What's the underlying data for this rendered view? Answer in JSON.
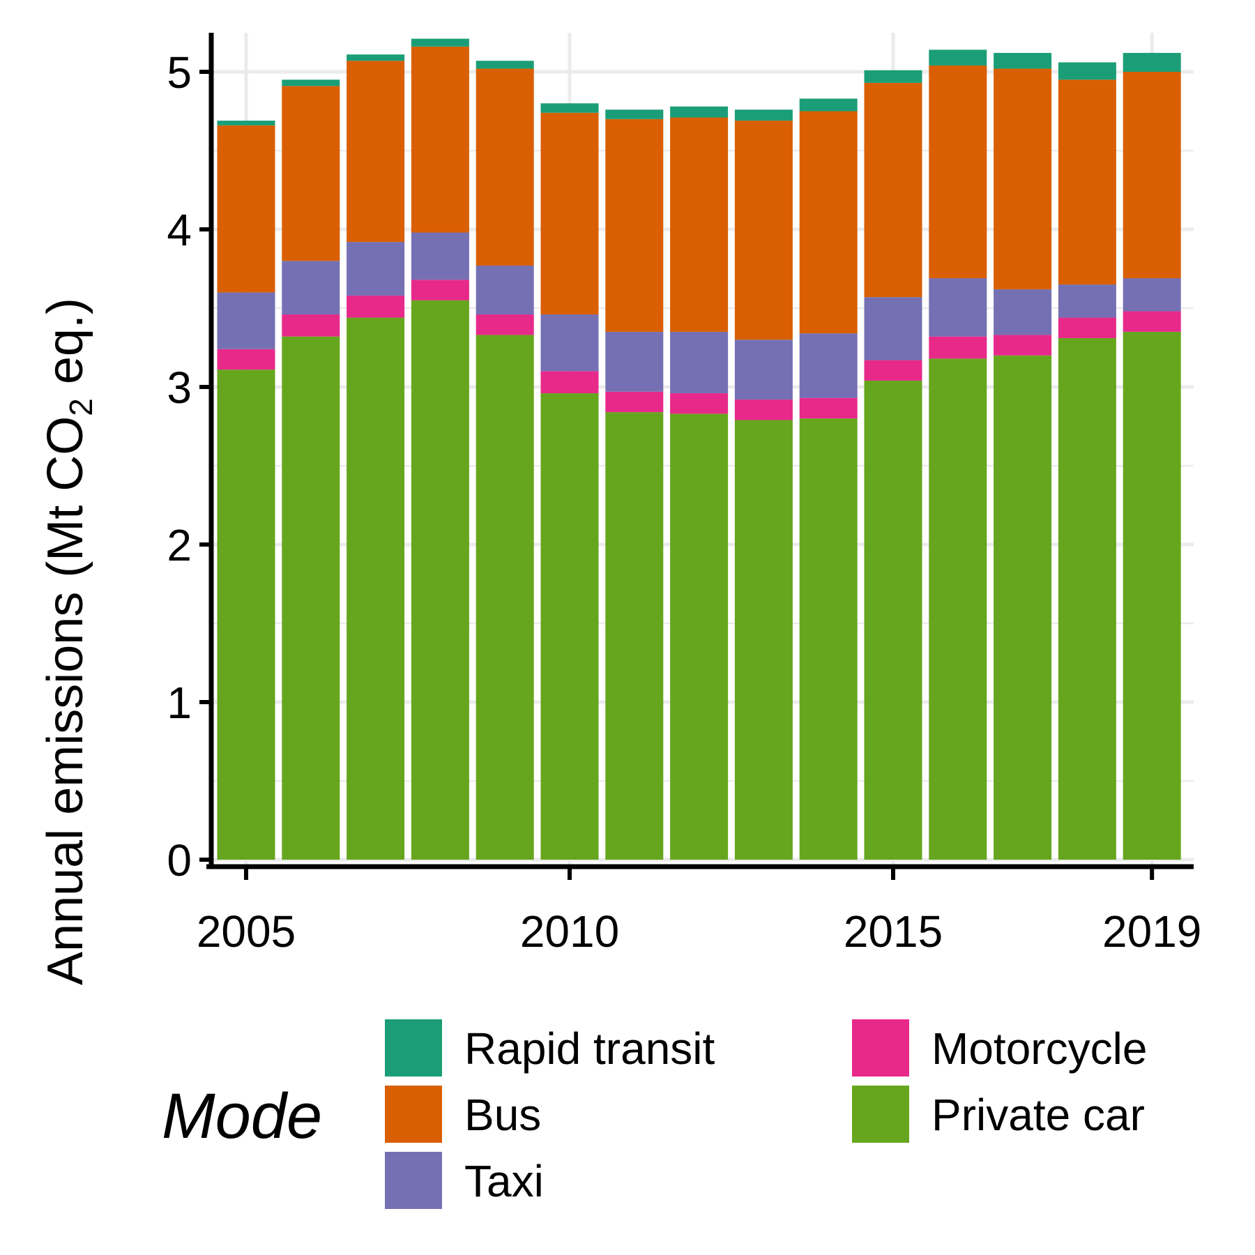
{
  "chart_data": {
    "type": "bar",
    "stacked": true,
    "x": [
      2005,
      2006,
      2007,
      2008,
      2009,
      2010,
      2011,
      2012,
      2013,
      2014,
      2015,
      2016,
      2017,
      2018,
      2019
    ],
    "x_ticks": [
      2005,
      2010,
      2015,
      2019
    ],
    "ylabel": "Annual emissions (Mt CO",
    "ylabel_subscript": "2",
    "ylabel_suffix": " eq.)",
    "ylim": [
      0,
      5.3
    ],
    "y_ticks": [
      0,
      1,
      2,
      3,
      4,
      5
    ],
    "grid": true,
    "legend": {
      "title": "Mode",
      "placement": "bottom",
      "items_order": [
        "Rapid transit",
        "Bus",
        "Taxi",
        "Motorcycle",
        "Private car"
      ]
    },
    "series": [
      {
        "name": "Private car",
        "color": "#66a61e",
        "values": [
          3.11,
          3.32,
          3.44,
          3.55,
          3.33,
          2.96,
          2.84,
          2.83,
          2.79,
          2.8,
          3.04,
          3.18,
          3.2,
          3.31,
          3.35
        ]
      },
      {
        "name": "Motorcycle",
        "color": "#e7298a",
        "values": [
          0.13,
          0.14,
          0.14,
          0.13,
          0.13,
          0.14,
          0.13,
          0.13,
          0.13,
          0.13,
          0.13,
          0.14,
          0.13,
          0.13,
          0.13
        ]
      },
      {
        "name": "Taxi",
        "color": "#7570b3",
        "values": [
          0.36,
          0.34,
          0.34,
          0.3,
          0.31,
          0.36,
          0.38,
          0.39,
          0.38,
          0.41,
          0.4,
          0.37,
          0.29,
          0.21,
          0.21
        ]
      },
      {
        "name": "Bus",
        "color": "#d95f02",
        "values": [
          1.06,
          1.11,
          1.15,
          1.18,
          1.25,
          1.28,
          1.35,
          1.36,
          1.39,
          1.41,
          1.36,
          1.35,
          1.4,
          1.3,
          1.31
        ]
      },
      {
        "name": "Rapid transit",
        "color": "#1b9e77",
        "values": [
          0.03,
          0.04,
          0.04,
          0.05,
          0.05,
          0.06,
          0.06,
          0.07,
          0.07,
          0.08,
          0.08,
          0.1,
          0.1,
          0.11,
          0.12
        ]
      }
    ]
  }
}
